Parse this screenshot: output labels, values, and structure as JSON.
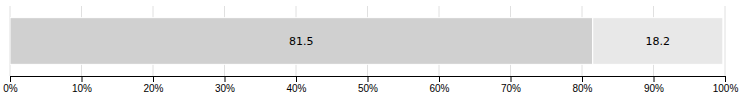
{
  "chart_data": {
    "type": "bar",
    "orientation": "horizontal",
    "stacked": true,
    "data_labels": true,
    "grid": true,
    "tick_labels": "x",
    "categories": [
      null
    ],
    "series": [
      {
        "color": "#d0d0d0",
        "values": [
          81.5
        ]
      },
      {
        "color": "#e8e8e8",
        "values": [
          18.2
        ]
      }
    ],
    "xlim": [
      0,
      100
    ],
    "xticks": [
      {
        "value": 0,
        "label": "0%"
      },
      {
        "value": 10,
        "label": "10%"
      },
      {
        "value": 20,
        "label": "20%"
      },
      {
        "value": 30,
        "label": "30%"
      },
      {
        "value": 40,
        "label": "40%"
      },
      {
        "value": 50,
        "label": "50%"
      },
      {
        "value": 60,
        "label": "60%"
      },
      {
        "value": 70,
        "label": "70%"
      },
      {
        "value": 80,
        "label": "80%"
      },
      {
        "value": 90,
        "label": "90%"
      },
      {
        "value": 100,
        "label": "100%"
      }
    ]
  }
}
